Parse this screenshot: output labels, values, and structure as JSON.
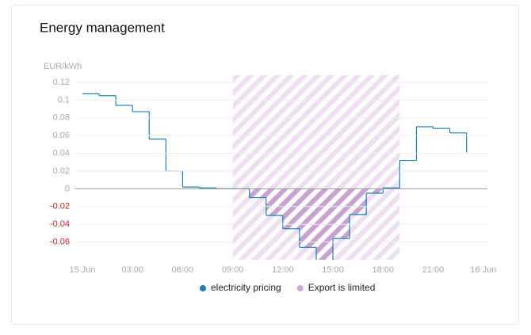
{
  "chart_data": {
    "type": "step-line",
    "title": "Energy management",
    "y_label": "EUR/kWh",
    "x": [
      0,
      1,
      2,
      3,
      4,
      5,
      6,
      7,
      8,
      9,
      10,
      11,
      12,
      13,
      14,
      15,
      16,
      17,
      18,
      19,
      20,
      21,
      22,
      23
    ],
    "series": [
      {
        "name": "electricity pricing",
        "color": "#1f7db8",
        "values": [
          0.107,
          0.105,
          0.094,
          0.087,
          0.056,
          0.02,
          0.002,
          0.001,
          0,
          0,
          -0.01,
          -0.03,
          -0.045,
          -0.066,
          -0.085,
          -0.056,
          -0.029,
          -0.005,
          0.001,
          0.032,
          0.07,
          0.068,
          0.063,
          0.041
        ]
      }
    ],
    "bands": [
      {
        "name": "Export is limited",
        "color": "#c9a9d6",
        "x": [
          9,
          19
        ]
      }
    ],
    "xlim": [
      -0.45,
      24.25
    ],
    "xticks": [
      {
        "value": 0,
        "label": "15 Jun"
      },
      {
        "value": 3,
        "label": "03:00"
      },
      {
        "value": 6,
        "label": "06:00"
      },
      {
        "value": 9,
        "label": "09:00"
      },
      {
        "value": 12,
        "label": "12:00"
      },
      {
        "value": 15,
        "label": "15:00"
      },
      {
        "value": 18,
        "label": "18:00"
      },
      {
        "value": 21,
        "label": "21:00"
      },
      {
        "value": 24,
        "label": "16 Jun"
      }
    ],
    "ylim": [
      -0.08,
      0.128
    ],
    "yticks": [
      0.12,
      0.1,
      0.08,
      0.06,
      0.04,
      0.02,
      0,
      -0.02,
      -0.04,
      -0.06
    ],
    "grid": true
  }
}
